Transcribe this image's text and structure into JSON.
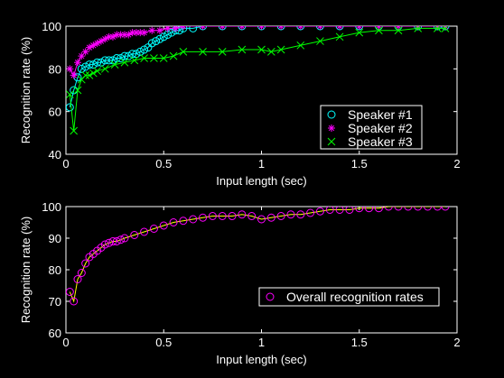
{
  "chart_data": [
    {
      "type": "line",
      "xlabel": "Input length (sec)",
      "ylabel": "Recognition rate (%)",
      "xlim": [
        0,
        2
      ],
      "ylim": [
        40,
        100
      ],
      "xticks": [
        0,
        0.5,
        1,
        1.5,
        2
      ],
      "yticks": [
        40,
        60,
        80,
        100
      ],
      "legend": "bottom-right",
      "series": [
        {
          "name": "Speaker #1",
          "color": "#00ffff",
          "marker": "circle",
          "x": [
            0.02,
            0.04,
            0.06,
            0.08,
            0.1,
            0.12,
            0.14,
            0.16,
            0.18,
            0.2,
            0.22,
            0.24,
            0.26,
            0.28,
            0.3,
            0.32,
            0.34,
            0.36,
            0.38,
            0.4,
            0.42,
            0.44,
            0.46,
            0.48,
            0.5,
            0.52,
            0.54,
            0.56,
            0.58,
            0.6,
            0.65,
            0.7,
            0.8,
            0.9,
            1.0,
            1.1,
            1.2,
            1.3,
            1.4,
            1.5,
            1.6,
            1.7,
            1.8,
            1.9,
            1.94
          ],
          "y": [
            62,
            70,
            76,
            80,
            81,
            82,
            82,
            83,
            83,
            84,
            84,
            84,
            85,
            85,
            86,
            86,
            87,
            87,
            88,
            89,
            90,
            92,
            93,
            94,
            95,
            96,
            97,
            98,
            98,
            99,
            99,
            100,
            100,
            100,
            100,
            100,
            100,
            100,
            100,
            100,
            100,
            100,
            100,
            100,
            100
          ]
        },
        {
          "name": "Speaker #2",
          "color": "#ff00ff",
          "marker": "star",
          "x": [
            0.02,
            0.04,
            0.06,
            0.08,
            0.1,
            0.12,
            0.14,
            0.16,
            0.18,
            0.2,
            0.22,
            0.24,
            0.26,
            0.28,
            0.3,
            0.32,
            0.34,
            0.36,
            0.38,
            0.4,
            0.44,
            0.48,
            0.52,
            0.56,
            0.6,
            0.7,
            0.8,
            0.9,
            1.0,
            1.1,
            1.2,
            1.3,
            1.4,
            1.5,
            1.6,
            1.7,
            1.8,
            1.9,
            1.94
          ],
          "y": [
            80,
            77,
            83,
            86,
            88,
            90,
            91,
            92,
            93,
            94,
            95,
            95,
            96,
            96,
            96,
            96,
            97,
            97,
            97,
            97,
            98,
            98,
            99,
            99,
            100,
            100,
            100,
            100,
            100,
            100,
            100,
            100,
            100,
            100,
            100,
            100,
            100,
            100,
            100
          ]
        },
        {
          "name": "Speaker #3",
          "color": "#00ff00",
          "marker": "x",
          "x": [
            0.02,
            0.04,
            0.06,
            0.08,
            0.1,
            0.12,
            0.14,
            0.16,
            0.2,
            0.25,
            0.3,
            0.35,
            0.4,
            0.45,
            0.5,
            0.55,
            0.6,
            0.7,
            0.8,
            0.9,
            1.0,
            1.05,
            1.1,
            1.2,
            1.3,
            1.4,
            1.5,
            1.6,
            1.7,
            1.8,
            1.9,
            1.94
          ],
          "y": [
            68,
            51,
            70,
            75,
            77,
            77,
            78,
            79,
            80,
            82,
            83,
            84,
            85,
            85,
            85,
            86,
            88,
            88,
            88,
            89,
            89,
            88,
            89,
            91,
            93,
            95,
            97,
            98,
            98,
            99,
            99,
            99
          ]
        }
      ]
    },
    {
      "type": "line",
      "xlabel": "Input length (sec)",
      "ylabel": "Recognition rate (%)",
      "xlim": [
        0,
        2
      ],
      "ylim": [
        60,
        100
      ],
      "xticks": [
        0,
        0.5,
        1,
        1.5,
        2
      ],
      "yticks": [
        60,
        70,
        80,
        90,
        100
      ],
      "legend": "bottom-right",
      "series": [
        {
          "name": "Overall recognition rates",
          "color": "#ff00ff",
          "line_color": "#ffff00",
          "marker": "circle",
          "x": [
            0.02,
            0.04,
            0.06,
            0.08,
            0.1,
            0.12,
            0.14,
            0.16,
            0.18,
            0.2,
            0.22,
            0.24,
            0.26,
            0.28,
            0.3,
            0.35,
            0.4,
            0.45,
            0.5,
            0.55,
            0.6,
            0.65,
            0.7,
            0.75,
            0.8,
            0.85,
            0.9,
            0.95,
            1.0,
            1.05,
            1.1,
            1.15,
            1.2,
            1.25,
            1.3,
            1.35,
            1.4,
            1.45,
            1.5,
            1.55,
            1.6,
            1.65,
            1.7,
            1.75,
            1.8,
            1.85,
            1.9,
            1.94
          ],
          "y": [
            73,
            70,
            77,
            79,
            82,
            84,
            85,
            86,
            87,
            88,
            88.5,
            89,
            89,
            89.5,
            90,
            91,
            92,
            93,
            94,
            95,
            95.5,
            96,
            96.5,
            97,
            97,
            97,
            97.5,
            97,
            96,
            96.5,
            97,
            97.5,
            97.5,
            98,
            98.5,
            99,
            99,
            99,
            99.5,
            99.5,
            99.5,
            100,
            100,
            100,
            100,
            100,
            100,
            100
          ]
        }
      ]
    }
  ]
}
